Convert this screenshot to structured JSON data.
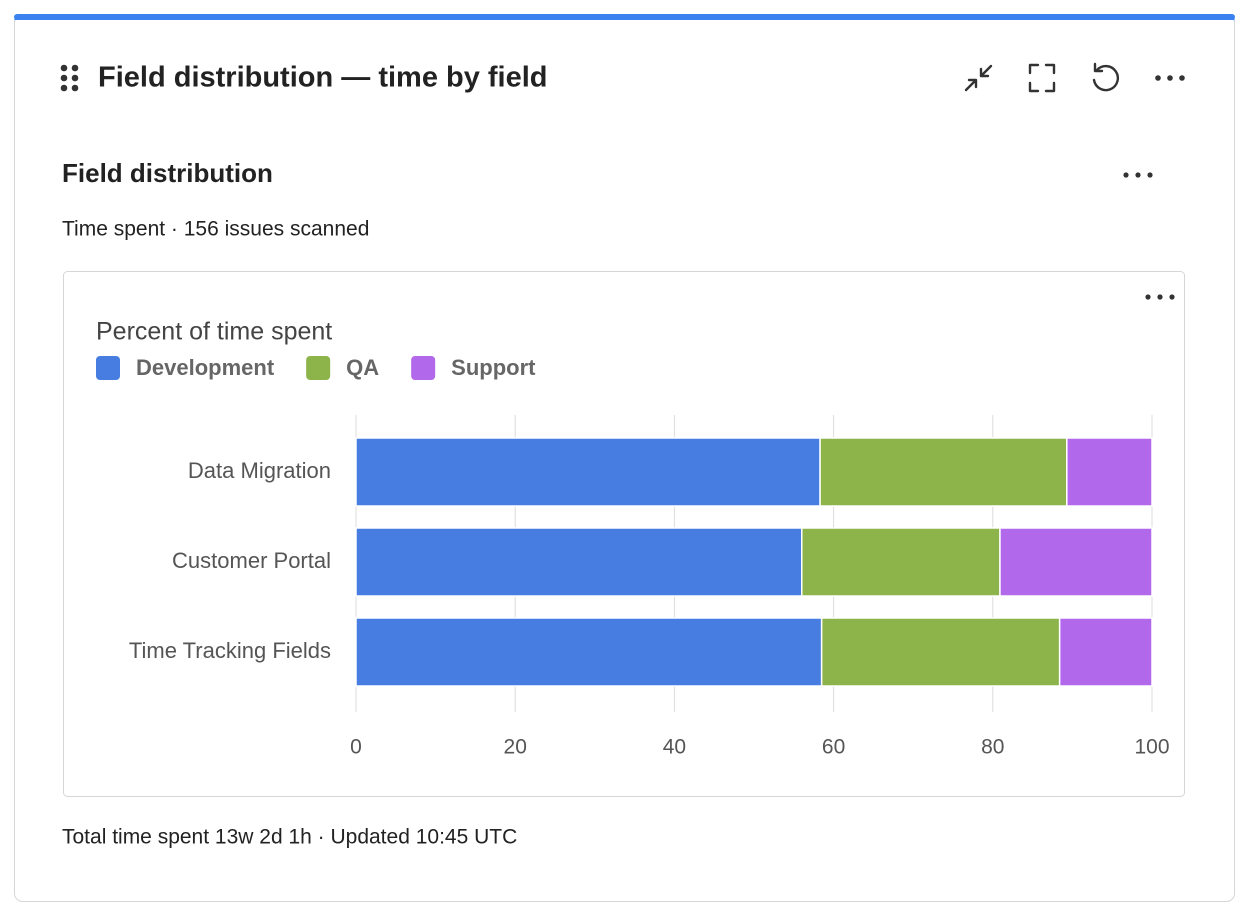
{
  "header": {
    "title": "Field distribution — time by field"
  },
  "card": {
    "title": "Field distribution",
    "subtitle": "Time spent · 156 issues scanned",
    "footer": "Total time spent 13w 2d 1h · Updated 10:45 UTC"
  },
  "chart_data": {
    "type": "bar",
    "orientation": "horizontal",
    "stacked": true,
    "title": "Percent of time spent",
    "categories": [
      "Data Migration",
      "Customer Portal",
      "Time Tracking Fields"
    ],
    "series": [
      {
        "name": "Development",
        "color": "#477de0",
        "values": [
          58.3,
          56.0,
          58.5
        ]
      },
      {
        "name": "QA",
        "color": "#8db34b",
        "values": [
          31.0,
          24.9,
          29.9
        ]
      },
      {
        "name": "Support",
        "color": "#b268ea",
        "values": [
          10.7,
          19.1,
          11.6
        ]
      }
    ],
    "xlim": [
      0,
      100
    ],
    "xticks": [
      0,
      20,
      40,
      60,
      80,
      100
    ],
    "grid": true,
    "legend": "top-left"
  }
}
